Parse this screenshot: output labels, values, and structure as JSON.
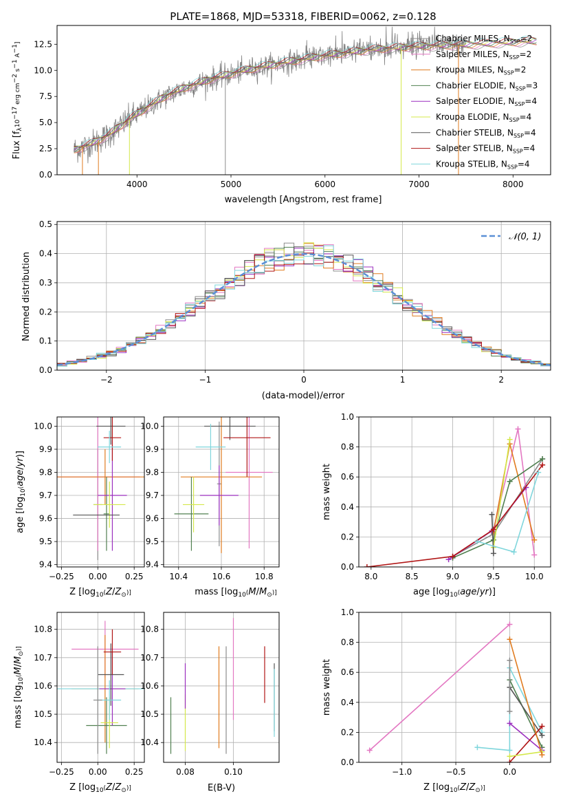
{
  "colors": {
    "Chabrier MILES": "#8c8c8c",
    "Salpeter MILES": "#e377c2",
    "Kroupa MILES": "#e07b1f",
    "Chabrier ELODIE": "#4f7f4f",
    "Salpeter ELODIE": "#9b2fbf",
    "Kroupa ELODIE": "#d4e84a",
    "Chabrier STELIB": "#555555",
    "Salpeter STELIB": "#b01515",
    "Kroupa STELIB": "#7fd6dc",
    "gaussian": "#5b8fd6"
  },
  "legend_spectrum": [
    {
      "key": "Chabrier MILES",
      "label": "Chabrier MILES, N",
      "sub": "SSP",
      "tail": "=2"
    },
    {
      "key": "Salpeter MILES",
      "label": "Salpeter MILES, N",
      "sub": "SSP",
      "tail": "=2"
    },
    {
      "key": "Kroupa MILES",
      "label": "Kroupa MILES, N",
      "sub": "SSP",
      "tail": "=2"
    },
    {
      "key": "Chabrier ELODIE",
      "label": "Chabrier ELODIE, N",
      "sub": "SSP",
      "tail": "=3"
    },
    {
      "key": "Salpeter ELODIE",
      "label": "Salpeter ELODIE, N",
      "sub": "SSP",
      "tail": "=4"
    },
    {
      "key": "Kroupa ELODIE",
      "label": "Kroupa ELODIE, N",
      "sub": "SSP",
      "tail": "=4"
    },
    {
      "key": "Chabrier STELIB",
      "label": "Chabrier STELIB, N",
      "sub": "SSP",
      "tail": "=4"
    },
    {
      "key": "Salpeter STELIB",
      "label": "Salpeter STELIB, N",
      "sub": "SSP",
      "tail": "=4"
    },
    {
      "key": "Kroupa STELIB",
      "label": "Kroupa STELIB, N",
      "sub": "SSP",
      "tail": "=4"
    }
  ],
  "chart_data": [
    {
      "type": "line",
      "title": "PLATE=1868, MJD=53318, FIBERID=0062, z=0.128",
      "xlabel": "wavelength [Angstrom, rest frame]",
      "ylabel": "Flux [f_λ 10^-17 erg cm^-2 s^-1 A^-1]",
      "xlim": [
        3150,
        8400
      ],
      "ylim": [
        0,
        14.3
      ],
      "xticks": [
        4000,
        5000,
        6000,
        7000,
        8000
      ],
      "yticks": [
        0.0,
        2.5,
        5.0,
        7.5,
        10.0,
        12.5
      ],
      "ytick_labels": [
        "0.0",
        "2.5",
        "5.0",
        "7.5",
        "10.0",
        "12.5"
      ],
      "continuum": {
        "x": [
          3300,
          3500,
          3700,
          3900,
          4100,
          4300,
          4500,
          4800,
          5200,
          5600,
          6000,
          6500,
          7000,
          7400,
          7800,
          8200
        ],
        "y": [
          2.3,
          2.9,
          3.8,
          5.2,
          6.4,
          7.5,
          8.3,
          9.2,
          10.1,
          10.8,
          11.4,
          12.0,
          12.3,
          12.4,
          12.6,
          12.8
        ]
      },
      "series_drop_lines_x": [
        3420,
        3590,
        3920,
        4940,
        6810,
        7420
      ],
      "legend_position": "upper right"
    },
    {
      "type": "bar",
      "xlabel": "(data-model)/error",
      "ylabel": "Normed distribution",
      "xlim": [
        -2.5,
        2.5
      ],
      "ylim": [
        0,
        0.51
      ],
      "xticks": [
        -2,
        -1,
        0,
        1,
        2
      ],
      "xtick_labels": [
        "−2",
        "−1",
        "0",
        "1",
        "2"
      ],
      "yticks": [
        0.0,
        0.1,
        0.2,
        0.3,
        0.4,
        0.5
      ],
      "ytick_labels": [
        "0.0",
        "0.1",
        "0.2",
        "0.3",
        "0.4",
        "0.5"
      ],
      "bin_width": 0.1,
      "gaussian_label": "𝒩(0, 1)",
      "legend_position": "upper right"
    },
    {
      "type": "scatter",
      "xlabel": "Z [log10(Z/Z☉)]",
      "ylabel": "age [log10(age/yr)]",
      "xlim": [
        -0.28,
        0.32
      ],
      "ylim": [
        9.39,
        10.04
      ],
      "xticks": [
        -0.25,
        0.0,
        0.25
      ],
      "xtick_labels": [
        "−0.25",
        "0.00",
        "0.25"
      ],
      "yticks": [
        9.4,
        9.5,
        9.6,
        9.7,
        9.8,
        9.9,
        10.0
      ],
      "ytick_labels": [
        "9.4",
        "9.5",
        "9.6",
        "9.7",
        "9.8",
        "9.9",
        "10.0"
      ],
      "points": [
        {
          "key": "Chabrier MILES",
          "x": 0.0,
          "xerr": 0.03,
          "y": 9.66,
          "yerr": 0.24
        },
        {
          "key": "Salpeter MILES",
          "x": 0.0,
          "xerr": 0.29,
          "y": 9.78,
          "yerr": 0.32
        },
        {
          "key": "Kroupa MILES",
          "x": 0.05,
          "xerr": 0.33,
          "y": 9.78,
          "yerr": 0.12
        },
        {
          "key": "Chabrier ELODIE",
          "x": 0.06,
          "xerr": 0.02,
          "y": 9.62,
          "yerr": 0.16
        },
        {
          "key": "Salpeter ELODIE",
          "x": 0.1,
          "xerr": 0.1,
          "y": 9.7,
          "yerr": 0.24
        },
        {
          "key": "Kroupa ELODIE",
          "x": 0.08,
          "xerr": 0.11,
          "y": 9.66,
          "yerr": 0.1
        },
        {
          "key": "Chabrier STELIB",
          "x": 0.09,
          "xerr": 0.1,
          "y": 10.0,
          "yerr": 0.08
        },
        {
          "key": "Salpeter STELIB",
          "x": 0.1,
          "xerr": 0.06,
          "y": 9.95,
          "yerr": 0.1
        },
        {
          "key": "Kroupa STELIB",
          "x": 0.08,
          "xerr": 0.08,
          "y": 9.91,
          "yerr": 0.07
        },
        {
          "key": "Chabrier STELIB",
          "x": -0.01,
          "xerr": 0.16,
          "y": 9.615,
          "yerr": 0.0
        },
        {
          "key": "Salpeter MILES",
          "x": 0.09,
          "xerr": 0.0,
          "y": 9.79,
          "yerr": 0.0
        }
      ]
    },
    {
      "type": "scatter",
      "xlabel": "mass [log10(M/M☉)]",
      "xlim": [
        10.33,
        10.87
      ],
      "ylim": [
        9.39,
        10.04
      ],
      "xticks": [
        10.4,
        10.6,
        10.8
      ],
      "xtick_labels": [
        "10.4",
        "10.6",
        "10.8"
      ],
      "yticks": [
        9.4,
        9.5,
        9.6,
        9.7,
        9.8,
        9.9,
        10.0
      ],
      "ytick_labels": [
        "9.4",
        "9.5",
        "9.6",
        "9.7",
        "9.8",
        "9.9",
        "10.0"
      ],
      "points": [
        {
          "key": "Chabrier MILES",
          "x": 10.59,
          "xerr": 0.01,
          "y": 9.75,
          "yerr": 0.27
        },
        {
          "key": "Salpeter MILES",
          "x": 10.73,
          "xerr": 0.11,
          "y": 9.8,
          "yerr": 0.33
        },
        {
          "key": "Kroupa MILES",
          "x": 10.6,
          "xerr": 0.19,
          "y": 9.78,
          "yerr": 0.33
        },
        {
          "key": "Chabrier ELODIE",
          "x": 10.46,
          "xerr": 0.08,
          "y": 9.62,
          "yerr": 0.16
        },
        {
          "key": "Salpeter ELODIE",
          "x": 10.59,
          "xerr": 0.09,
          "y": 9.7,
          "yerr": 0.13
        },
        {
          "key": "Kroupa ELODIE",
          "x": 10.47,
          "xerr": 0.05,
          "y": 9.66,
          "yerr": 0.12
        },
        {
          "key": "Chabrier STELIB",
          "x": 10.64,
          "xerr": 0.12,
          "y": 10.0,
          "yerr": 0.06
        },
        {
          "key": "Salpeter STELIB",
          "x": 10.72,
          "xerr": 0.11,
          "y": 9.95,
          "yerr": 0.17
        },
        {
          "key": "Kroupa STELIB",
          "x": 10.55,
          "xerr": 0.07,
          "y": 9.91,
          "yerr": 0.1
        }
      ]
    },
    {
      "type": "line",
      "xlabel": "age [log10(age/yr)]",
      "ylabel": "mass weight",
      "xlim": [
        7.85,
        10.2
      ],
      "ylim": [
        0,
        1.0
      ],
      "xticks": [
        8.0,
        8.5,
        9.0,
        9.5,
        10.0
      ],
      "xtick_labels": [
        "8.0",
        "8.5",
        "9.0",
        "9.5",
        "10.0"
      ],
      "yticks": [
        0.0,
        0.2,
        0.4,
        0.6,
        0.8,
        1.0
      ],
      "ytick_labels": [
        "0.0",
        "0.2",
        "0.4",
        "0.6",
        "0.8",
        "1.0"
      ],
      "series": [
        {
          "key": "Chabrier MILES",
          "x": [
            9.0,
            9.5,
            10.1
          ],
          "y": [
            0.07,
            0.22,
            0.72
          ]
        },
        {
          "key": "Salpeter MILES",
          "x": [
            9.5,
            9.8,
            10.0
          ],
          "y": [
            0.25,
            0.92,
            0.08
          ]
        },
        {
          "key": "Kroupa MILES",
          "x": [
            9.5,
            9.7,
            10.0
          ],
          "y": [
            0.23,
            0.82,
            0.18
          ]
        },
        {
          "key": "Chabrier ELODIE",
          "x": [
            9.0,
            9.5,
            9.7,
            10.1
          ],
          "y": [
            0.06,
            0.18,
            0.57,
            0.72
          ]
        },
        {
          "key": "Salpeter ELODIE",
          "x": [
            8.95,
            9.48,
            9.9
          ],
          "y": [
            0.05,
            0.24,
            0.53
          ]
        },
        {
          "key": "Kroupa ELODIE",
          "x": [
            9.5,
            9.7
          ],
          "y": [
            0.13,
            0.85
          ]
        },
        {
          "key": "Chabrier STELIB",
          "x": [
            9.48,
            9.5
          ],
          "y": [
            0.35,
            0.09
          ]
        },
        {
          "key": "Salpeter STELIB",
          "x": [
            7.95,
            9.0,
            9.5,
            10.1
          ],
          "y": [
            0.0,
            0.07,
            0.25,
            0.68
          ]
        },
        {
          "key": "Kroupa STELIB",
          "x": [
            9.3,
            9.75,
            10.05
          ],
          "y": [
            0.17,
            0.1,
            0.63
          ]
        }
      ]
    },
    {
      "type": "scatter",
      "xlabel": "Z [log10(Z/Z☉)]",
      "ylabel": "mass [log10(M/M☉)]",
      "xlim": [
        -0.28,
        0.32
      ],
      "ylim": [
        10.33,
        10.86
      ],
      "xticks": [
        -0.25,
        0.0,
        0.25
      ],
      "xtick_labels": [
        "−0.25",
        "0.00",
        "0.25"
      ],
      "yticks": [
        10.4,
        10.5,
        10.6,
        10.7,
        10.8
      ],
      "ytick_labels": [
        "10.4",
        "10.5",
        "10.6",
        "10.7",
        "10.8"
      ],
      "points": [
        {
          "key": "Salpeter MILES",
          "x": 0.05,
          "xerr": 0.23,
          "y": 10.73,
          "yerr": 0.1
        },
        {
          "key": "Kroupa MILES",
          "x": 0.05,
          "xerr": 0.23,
          "y": 10.59,
          "yerr": 0.19
        },
        {
          "key": "Kroupa STELIB",
          "x": 0.02,
          "xerr": 0.3,
          "y": 10.59,
          "yerr": 0.0
        },
        {
          "key": "Chabrier ELODIE",
          "x": 0.06,
          "xerr": 0.14,
          "y": 10.46,
          "yerr": 0.1
        },
        {
          "key": "Salpeter ELODIE",
          "x": 0.1,
          "xerr": 0.09,
          "y": 10.59,
          "yerr": 0.13
        },
        {
          "key": "Kroupa ELODIE",
          "x": 0.08,
          "xerr": 0.06,
          "y": 10.47,
          "yerr": 0.09
        },
        {
          "key": "Chabrier STELIB",
          "x": 0.09,
          "xerr": 0.09,
          "y": 10.64,
          "yerr": 0.11
        },
        {
          "key": "Salpeter STELIB",
          "x": 0.1,
          "xerr": 0.06,
          "y": 10.72,
          "yerr": 0.08
        },
        {
          "key": "Kroupa STELIB",
          "x": 0.08,
          "xerr": 0.08,
          "y": 10.55,
          "yerr": 0.07
        },
        {
          "key": "Chabrier MILES",
          "x": 0.0,
          "xerr": 0.03,
          "y": 10.55,
          "yerr": 0.19
        }
      ]
    },
    {
      "type": "scatter",
      "xlabel": "E(B-V)",
      "xlim": [
        0.071,
        0.119
      ],
      "ylim": [
        10.33,
        10.86
      ],
      "xticks": [
        0.08,
        0.1
      ],
      "xtick_labels": [
        "0.08",
        "0.10"
      ],
      "yticks": [
        10.4,
        10.5,
        10.6,
        10.7,
        10.8
      ],
      "ytick_labels": [
        "10.4",
        "10.5",
        "10.6",
        "10.7",
        "10.8"
      ],
      "points": [
        {
          "key": "Chabrier ELODIE",
          "x": 0.074,
          "y": 10.46,
          "yerr": 0.1
        },
        {
          "key": "Kroupa ELODIE",
          "x": 0.08,
          "y": 10.47,
          "yerr": 0.1
        },
        {
          "key": "Salpeter ELODIE",
          "x": 0.08,
          "y": 10.6,
          "yerr": 0.08
        },
        {
          "key": "Kroupa MILES",
          "x": 0.094,
          "y": 10.56,
          "yerr": 0.18
        },
        {
          "key": "Chabrier MILES",
          "x": 0.097,
          "y": 10.55,
          "yerr": 0.19
        },
        {
          "key": "Salpeter MILES",
          "x": 0.1,
          "y": 10.66,
          "yerr": 0.18
        },
        {
          "key": "Salpeter STELIB",
          "x": 0.113,
          "y": 10.64,
          "yerr": 0.1
        },
        {
          "key": "Chabrier STELIB",
          "x": 0.117,
          "y": 10.56,
          "yerr": 0.12
        },
        {
          "key": "Kroupa STELIB",
          "x": 0.117,
          "y": 10.54,
          "yerr": 0.12
        }
      ]
    },
    {
      "type": "line",
      "xlabel": "Z [log10(Z/Z☉)]",
      "ylabel": "mass weight",
      "xlim": [
        -1.4,
        0.38
      ],
      "ylim": [
        0,
        1.0
      ],
      "xticks": [
        -1.0,
        -0.5,
        0.0
      ],
      "xtick_labels": [
        "−1.0",
        "−0.5",
        "0.0"
      ],
      "yticks": [
        0.0,
        0.2,
        0.4,
        0.6,
        0.8,
        1.0
      ],
      "ytick_labels": [
        "0.0",
        "0.2",
        "0.4",
        "0.6",
        "0.8",
        "1.0"
      ],
      "series": [
        {
          "key": "Salpeter MILES",
          "x": [
            -1.3,
            0.0
          ],
          "y": [
            0.08,
            0.92
          ]
        },
        {
          "key": "Kroupa STELIB",
          "x": [
            -0.3,
            0.0,
            0.0,
            0.3
          ],
          "y": [
            0.1,
            0.08,
            0.63,
            0.2
          ]
        },
        {
          "key": "Chabrier ELODIE",
          "x": [
            0.0,
            0.3
          ],
          "y": [
            0.55,
            0.1
          ]
        },
        {
          "key": "Chabrier STELIB",
          "x": [
            0.0,
            0.3
          ],
          "y": [
            0.5,
            0.18
          ]
        },
        {
          "key": "Salpeter ELODIE",
          "x": [
            0.0,
            0.3
          ],
          "y": [
            0.26,
            0.08
          ]
        },
        {
          "key": "Salpeter STELIB",
          "x": [
            0.0,
            0.3
          ],
          "y": [
            0.0,
            0.24
          ]
        },
        {
          "key": "Kroupa ELODIE",
          "x": [
            0.0,
            0.3
          ],
          "y": [
            0.04,
            0.07
          ]
        },
        {
          "key": "Kroupa MILES",
          "x": [
            0.0,
            0.3
          ],
          "y": [
            0.82,
            0.05
          ]
        },
        {
          "key": "Chabrier MILES",
          "x": [
            0.0,
            0.0
          ],
          "y": [
            0.68,
            0.34
          ]
        }
      ]
    }
  ]
}
